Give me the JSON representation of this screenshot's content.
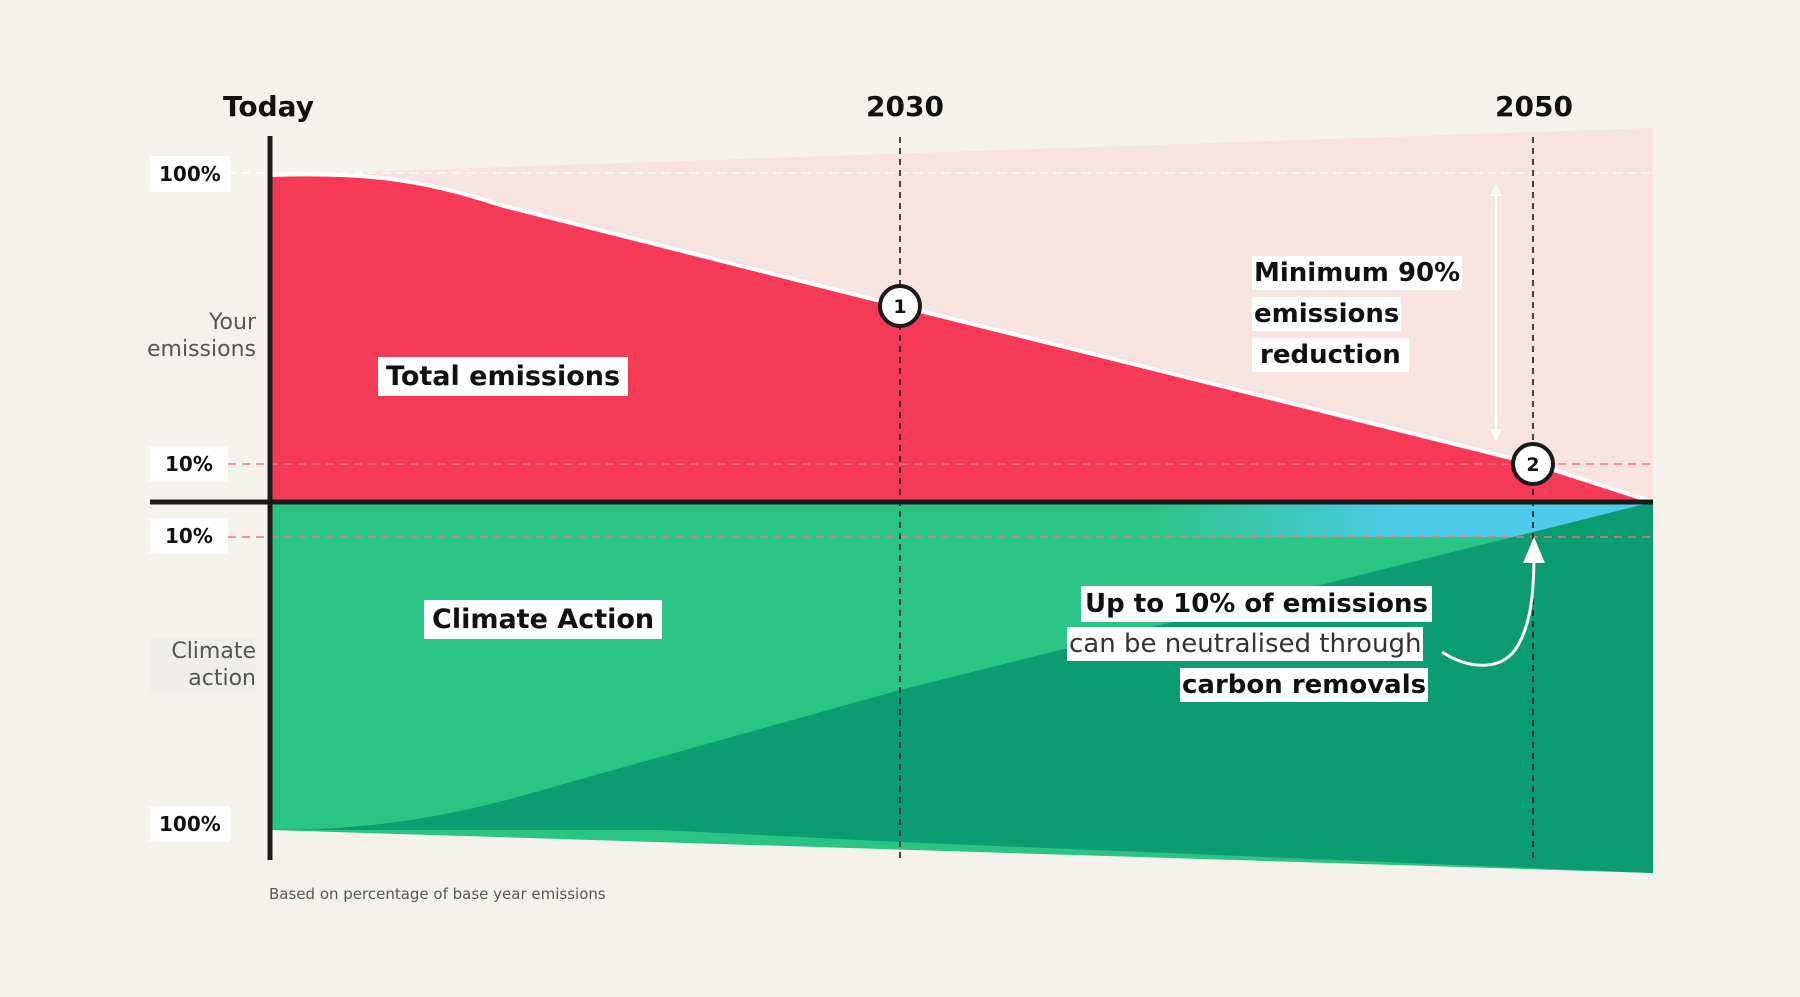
{
  "timeline": {
    "start": "Today",
    "mid": "2030",
    "end": "2050"
  },
  "y_labels": {
    "top_100": "100%",
    "top_10": "10%",
    "bottom_10": "10%",
    "bottom_100": "100%"
  },
  "side_labels": {
    "emissions_line1": "Your",
    "emissions_line2": "emissions",
    "climate_line1": "Climate",
    "climate_line2": "action"
  },
  "areas": {
    "total_emissions": "Total emissions",
    "climate_action": "Climate Action"
  },
  "milestones": [
    {
      "number": "1",
      "year": "2030"
    },
    {
      "number": "2",
      "year": "2050"
    }
  ],
  "annotation_reduction": {
    "line1": "Minimum 90%",
    "line2": "emissions",
    "line3": "reduction"
  },
  "annotation_removals": {
    "line1": "Up to 10% of emissions",
    "line2": "can be neutralised through",
    "line3": "carbon removals"
  },
  "footnote": "Based on percentage of base year emissions",
  "colors": {
    "background": "#f5f2ee",
    "emissions_red": "#f43a57",
    "reduction_pink": "#f7e3df",
    "climate_light_green": "#2ac484",
    "climate_dark_green": "#0b9c72",
    "removals_blue": "#4dcbe8",
    "axis": "#1a1a1a"
  }
}
